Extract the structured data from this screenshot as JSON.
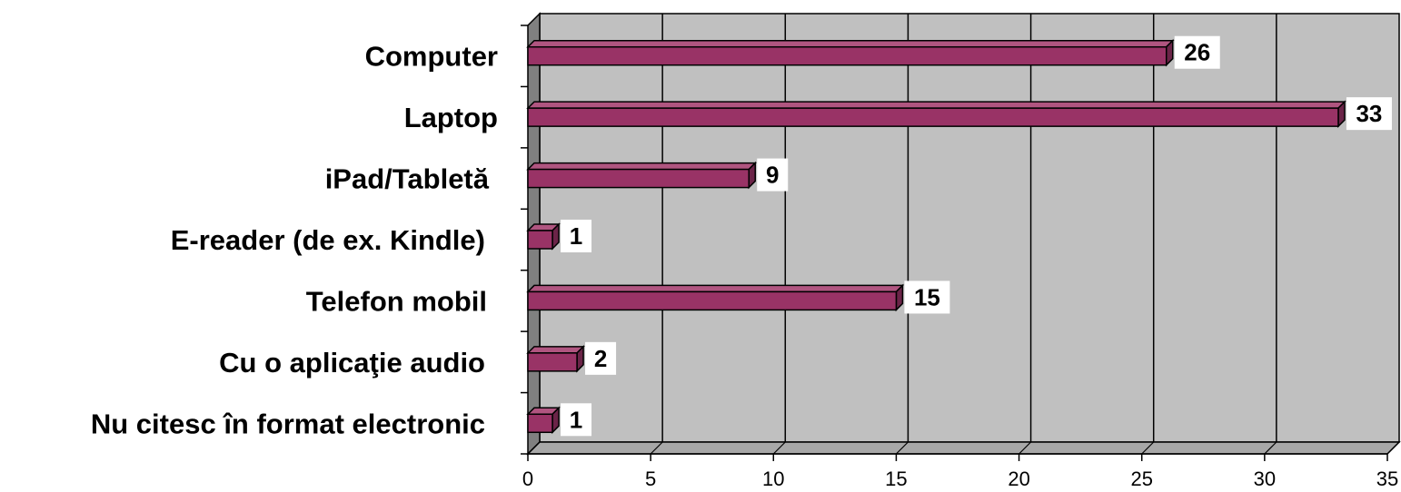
{
  "chart_data": {
    "type": "bar",
    "orientation": "horizontal",
    "categories": [
      "Computer",
      "Laptop",
      "iPad/Tabletă",
      "E-reader (de ex. Kindle)",
      "Telefon mobil",
      "Cu o aplicaţie audio",
      "Nu citesc în format electronic"
    ],
    "values": [
      26,
      33,
      9,
      1,
      15,
      2,
      1
    ],
    "data_labels": [
      "26",
      "33",
      "9",
      "1",
      "15",
      "2",
      "1"
    ],
    "xlim": [
      0,
      35
    ],
    "x_ticks": [
      "0",
      "5",
      "10",
      "15",
      "20",
      "25",
      "30",
      "35"
    ],
    "grid": "vertical",
    "style": "3d",
    "colors": {
      "bar_front": "#993366",
      "bar_top": "#b05580",
      "bar_side": "#6b2448",
      "bar_edge": "#000000",
      "plot_back": "#c0c0c0",
      "plot_floor": "#a8a8a8",
      "plot_wall": "#808080",
      "label_bg": "#ffffff"
    }
  }
}
